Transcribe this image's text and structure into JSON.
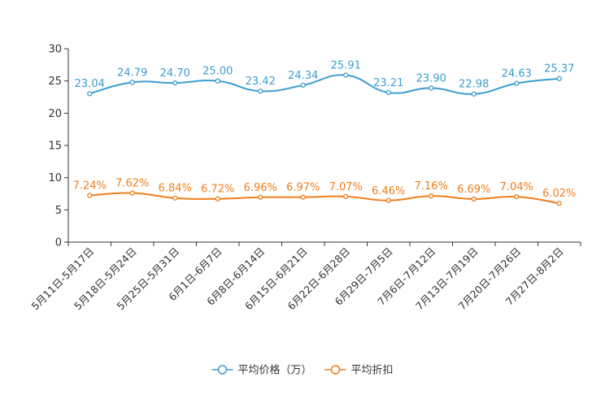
{
  "chart_data": {
    "type": "line",
    "title": "",
    "xlabel": "",
    "ylabel": "",
    "ylim": [
      0,
      30
    ],
    "yticks": [
      0,
      5,
      10,
      15,
      20,
      25,
      30
    ],
    "grid": false,
    "legend_position": "bottom-center",
    "categories": [
      "5月11日-5月17日",
      "5月18日-5月24日",
      "5月25日-5月31日",
      "6月1日-6月7日",
      "6月8日-6月14日",
      "6月15日-6月21日",
      "6月22日-6月28日",
      "6月29日-7月5日",
      "7月6日-7月12日",
      "7月13日-7月19日",
      "7月20日-7月26日",
      "7月27日-8月2日"
    ],
    "series": [
      {
        "name": "平均价格（万）",
        "color": "#3c9dd0",
        "values": [
          23.04,
          24.79,
          24.7,
          25.0,
          23.42,
          24.34,
          25.91,
          23.21,
          23.9,
          22.98,
          24.63,
          25.37
        ],
        "labels": [
          "23.04",
          "24.79",
          "24.70",
          "25.00",
          "23.42",
          "24.34",
          "25.91",
          "23.21",
          "23.90",
          "22.98",
          "24.63",
          "25.37"
        ]
      },
      {
        "name": "平均折扣",
        "color": "#f07d1a",
        "values": [
          7.24,
          7.62,
          6.84,
          6.72,
          6.96,
          6.97,
          7.07,
          6.46,
          7.16,
          6.69,
          7.04,
          6.02
        ],
        "labels": [
          "7.24%",
          "7.62%",
          "6.84%",
          "6.72%",
          "6.96%",
          "6.97%",
          "7.07%",
          "6.46%",
          "7.16%",
          "6.69%",
          "7.04%",
          "6.02%"
        ]
      }
    ]
  }
}
